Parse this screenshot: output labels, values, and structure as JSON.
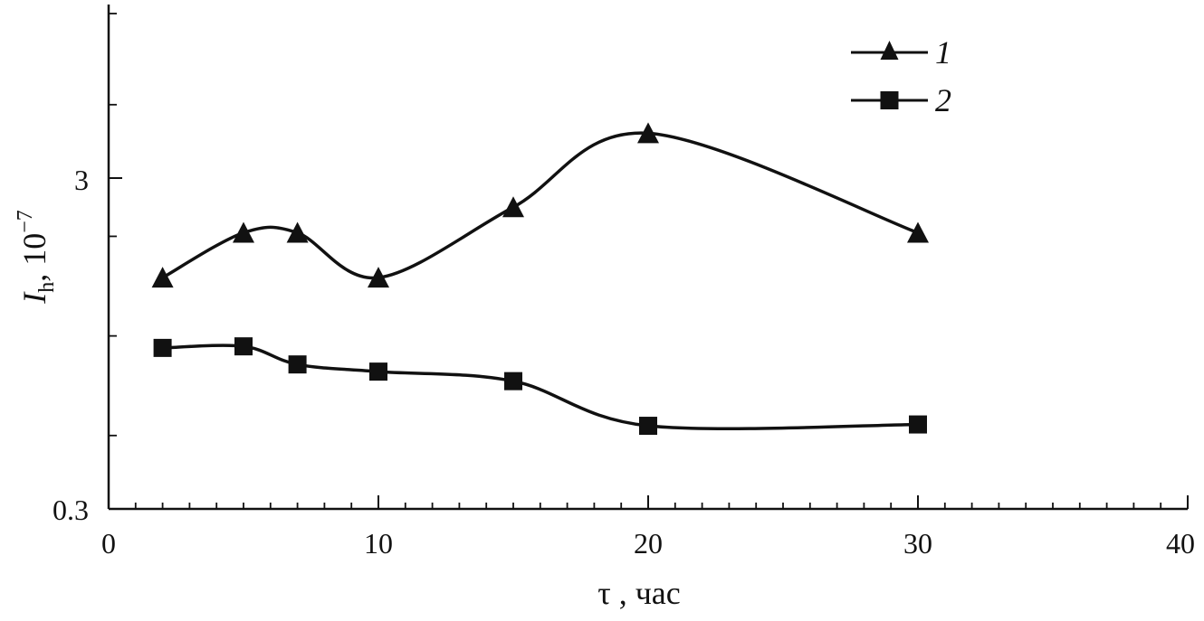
{
  "chart_data": {
    "type": "line",
    "xlabel": "τ , час",
    "ylabel": {
      "symbol": "I",
      "subscript": "h",
      "unit": ", 10",
      "exponent": "−7"
    },
    "x_ticks": [
      "0",
      "10",
      "20",
      "30",
      "40"
    ],
    "y_ticks": [
      "0.3",
      "3"
    ],
    "xlim": [
      0,
      40
    ],
    "ylim": [
      0.3,
      8
    ],
    "y_scale": "log",
    "grid": false,
    "legend_position": "top-right",
    "line_color": "#111111",
    "series": [
      {
        "name": "1",
        "marker": "triangle",
        "x": [
          2,
          5,
          7,
          10,
          15,
          20,
          30
        ],
        "y": [
          1.5,
          2.05,
          2.05,
          1.5,
          2.45,
          4.1,
          2.05
        ]
      },
      {
        "name": "2",
        "marker": "square",
        "x": [
          2,
          5,
          7,
          10,
          15,
          20,
          30
        ],
        "y": [
          0.92,
          0.93,
          0.82,
          0.78,
          0.73,
          0.535,
          0.54
        ]
      }
    ]
  }
}
